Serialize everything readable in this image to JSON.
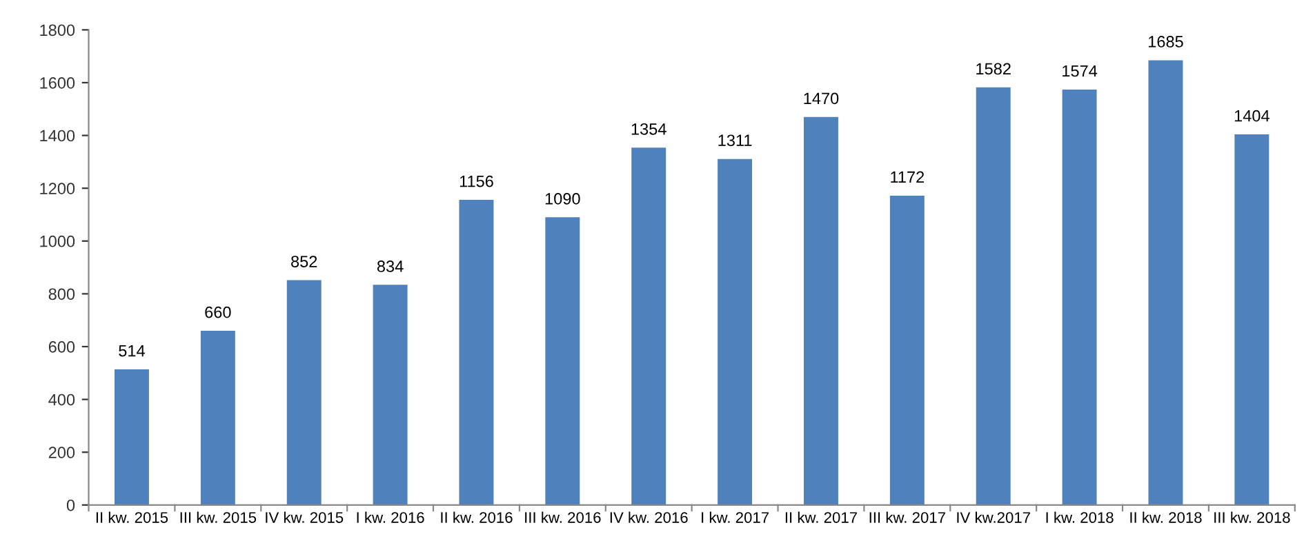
{
  "chart_data": {
    "type": "bar",
    "categories": [
      "II kw. 2015",
      "III kw. 2015",
      "IV kw. 2015",
      "I kw. 2016",
      "II kw. 2016",
      "III kw. 2016",
      "IV kw. 2016",
      "I kw. 2017",
      "II kw. 2017",
      "III kw. 2017",
      "IV kw.2017",
      "I kw. 2018",
      "II kw. 2018",
      "III kw. 2018"
    ],
    "values": [
      514,
      660,
      852,
      834,
      1156,
      1090,
      1354,
      1311,
      1470,
      1172,
      1582,
      1574,
      1685,
      1404
    ],
    "color": "#4f81bd",
    "ylim": [
      0,
      1800
    ],
    "yticks": [
      0,
      200,
      400,
      600,
      800,
      1000,
      1200,
      1400,
      1600,
      1800
    ],
    "grid": false,
    "data_labels": true
  }
}
